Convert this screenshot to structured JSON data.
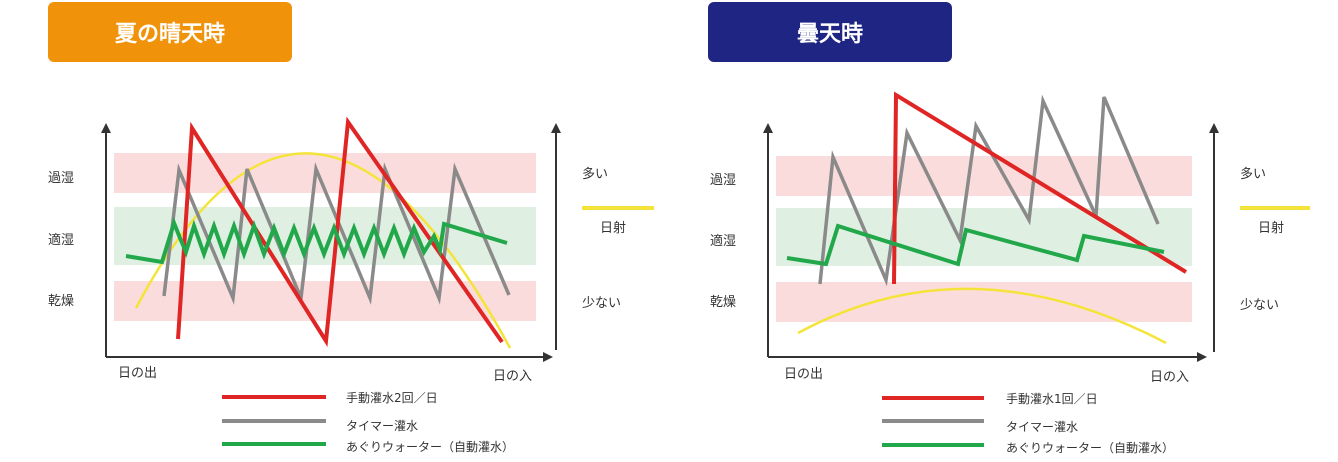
{
  "panels": [
    {
      "id": "sunny",
      "title": "夏の晴天時",
      "title_bg": "#f0930a",
      "zones": {
        "wet": "過湿",
        "optimal": "適湿",
        "dry": "乾燥"
      },
      "time_axis": {
        "start": "日の出",
        "end": "日の入"
      },
      "sun_axis": {
        "high": "多い",
        "low": "少ない",
        "legend": "日射"
      },
      "legend": [
        {
          "label": "手動灌水2回／日",
          "color": "#e02525"
        },
        {
          "label": "タイマー灌水",
          "color": "#8a8a8a"
        },
        {
          "label": "あぐりウォーター（自動灌水）",
          "color": "#22a84b"
        }
      ]
    },
    {
      "id": "cloudy",
      "title": "曇天時",
      "title_bg": "#1f2583",
      "zones": {
        "wet": "過湿",
        "optimal": "適湿",
        "dry": "乾燥"
      },
      "time_axis": {
        "start": "日の出",
        "end": "日の入"
      },
      "sun_axis": {
        "high": "多い",
        "low": "少ない",
        "legend": "日射"
      },
      "legend": [
        {
          "label": "手動灌水1回／日",
          "color": "#e02525"
        },
        {
          "label": "タイマー灌水",
          "color": "#8a8a8a"
        },
        {
          "label": "あぐりウォーター（自動灌水）",
          "color": "#22a84b"
        }
      ]
    }
  ],
  "colors": {
    "wet_zone": "#fbdcdc",
    "dry_zone": "#fbdcdc",
    "optimal_zone": "#dff0e2",
    "sunlight": "#f4e43a",
    "axis": "#333333"
  }
}
